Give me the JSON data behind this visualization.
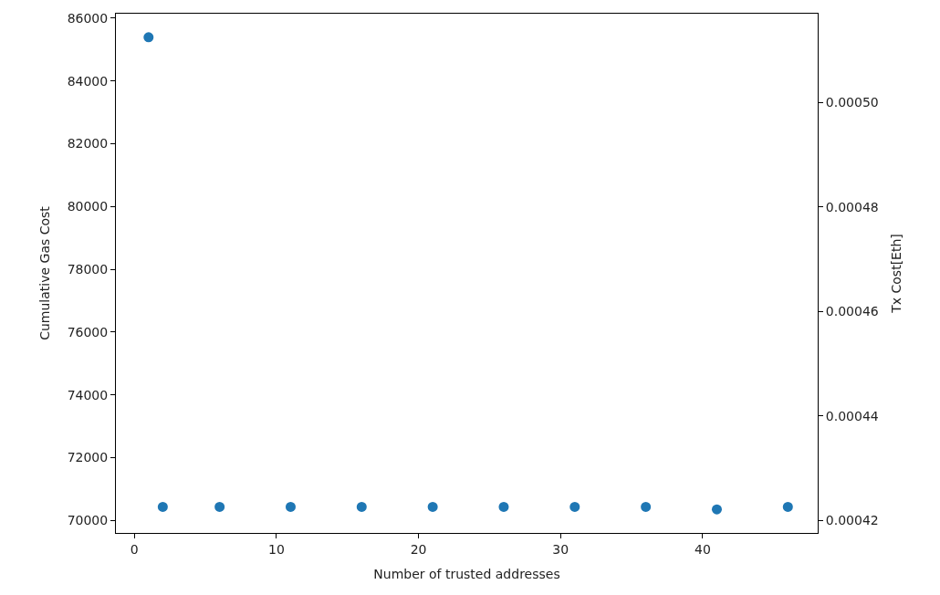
{
  "chart_data": {
    "type": "scatter",
    "xlabel": "Number of trusted addresses",
    "ylabel": "Cumulative Gas Cost",
    "y2label": "Tx Cost[Eth]",
    "x": [
      1,
      2,
      6,
      11,
      16,
      21,
      26,
      31,
      36,
      41,
      46
    ],
    "series": [
      {
        "color": "#1f77b4",
        "values": [
          85390,
          70430,
          70430,
          70430,
          70430,
          70430,
          70430,
          70430,
          70430,
          70350,
          70430
        ]
      }
    ],
    "marker": "circle",
    "xlim": [
      -1.3,
      48.1
    ],
    "xticks": [
      0,
      10,
      20,
      30,
      40
    ],
    "ylim": [
      69600,
      86140
    ],
    "yticks": [
      70000,
      72000,
      74000,
      76000,
      78000,
      80000,
      82000,
      84000,
      86000
    ],
    "y2lim": [
      0.0004176,
      0.000517
    ],
    "y2ticks": [
      {
        "value": 0.00042,
        "label": "0.00042"
      },
      {
        "value": 0.00044,
        "label": "0.00044"
      },
      {
        "value": 0.00046,
        "label": "0.00046"
      },
      {
        "value": 0.00048,
        "label": "0.00048"
      },
      {
        "value": 0.0005,
        "label": "0.00050"
      }
    ]
  }
}
